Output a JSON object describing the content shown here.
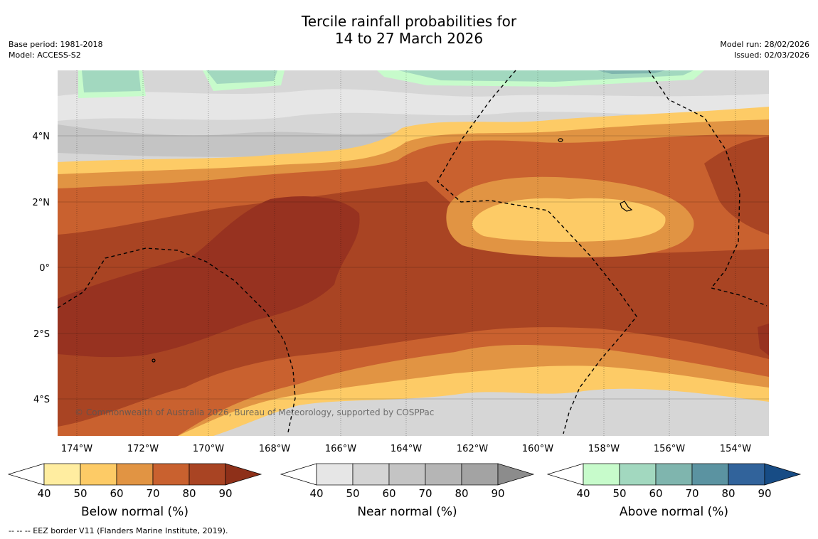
{
  "title": {
    "line1": "Tercile rainfall probabilities for",
    "line2": "14 to 27 March 2026"
  },
  "meta_left": {
    "base_period": "Base period: 1981-2018",
    "model": "Model: ACCESS-S2"
  },
  "meta_right": {
    "model_run": "Model run: 28/02/2026",
    "issued": "Issued: 02/03/2026"
  },
  "map": {
    "lon_labels": [
      "174°W",
      "172°W",
      "170°W",
      "168°W",
      "166°W",
      "164°W",
      "162°W",
      "160°W",
      "158°W",
      "156°W",
      "154°W"
    ],
    "lat_labels": [
      "4°N",
      "2°N",
      "0°",
      "2°S",
      "4°S"
    ],
    "copyright": "© Commonwealth of Australia 2026, Bureau of Meteorology, supported by COSPPac"
  },
  "colorbars": [
    {
      "label": "Below normal (%)",
      "ticks": [
        "40",
        "50",
        "60",
        "70",
        "80",
        "90"
      ],
      "colors": [
        "#ffffff",
        "#ffeda0",
        "#fdcb66",
        "#e19443",
        "#c9612f",
        "#a94423",
        "#8e3019"
      ]
    },
    {
      "label": "Near normal (%)",
      "ticks": [
        "40",
        "50",
        "60",
        "70",
        "80",
        "90"
      ],
      "colors": [
        "#ffffff",
        "#e6e6e6",
        "#d4d4d4",
        "#c4c4c4",
        "#b5b5b5",
        "#a3a3a3",
        "#8c8c8c"
      ]
    },
    {
      "label": "Above normal (%)",
      "ticks": [
        "40",
        "50",
        "60",
        "70",
        "80",
        "90"
      ],
      "colors": [
        "#ffffff",
        "#c7fbcb",
        "#a2d8bf",
        "#7fb5ae",
        "#5b93a1",
        "#31639b",
        "#174c85"
      ]
    }
  ],
  "footnote": "--  --  -- EEZ border V11 (Flanders Marine Institute, 2019).",
  "palette": {
    "sea": "#d6d6d6",
    "near_light": "#e6e6e6",
    "near_dark": "#c9c9c9",
    "below_50": "#fdcb66",
    "below_60": "#e19443",
    "below_70": "#c9612f",
    "below_80": "#a94423",
    "below_90": "#973220",
    "above_50": "#c7fbcb",
    "above_60": "#a2d8bf"
  }
}
